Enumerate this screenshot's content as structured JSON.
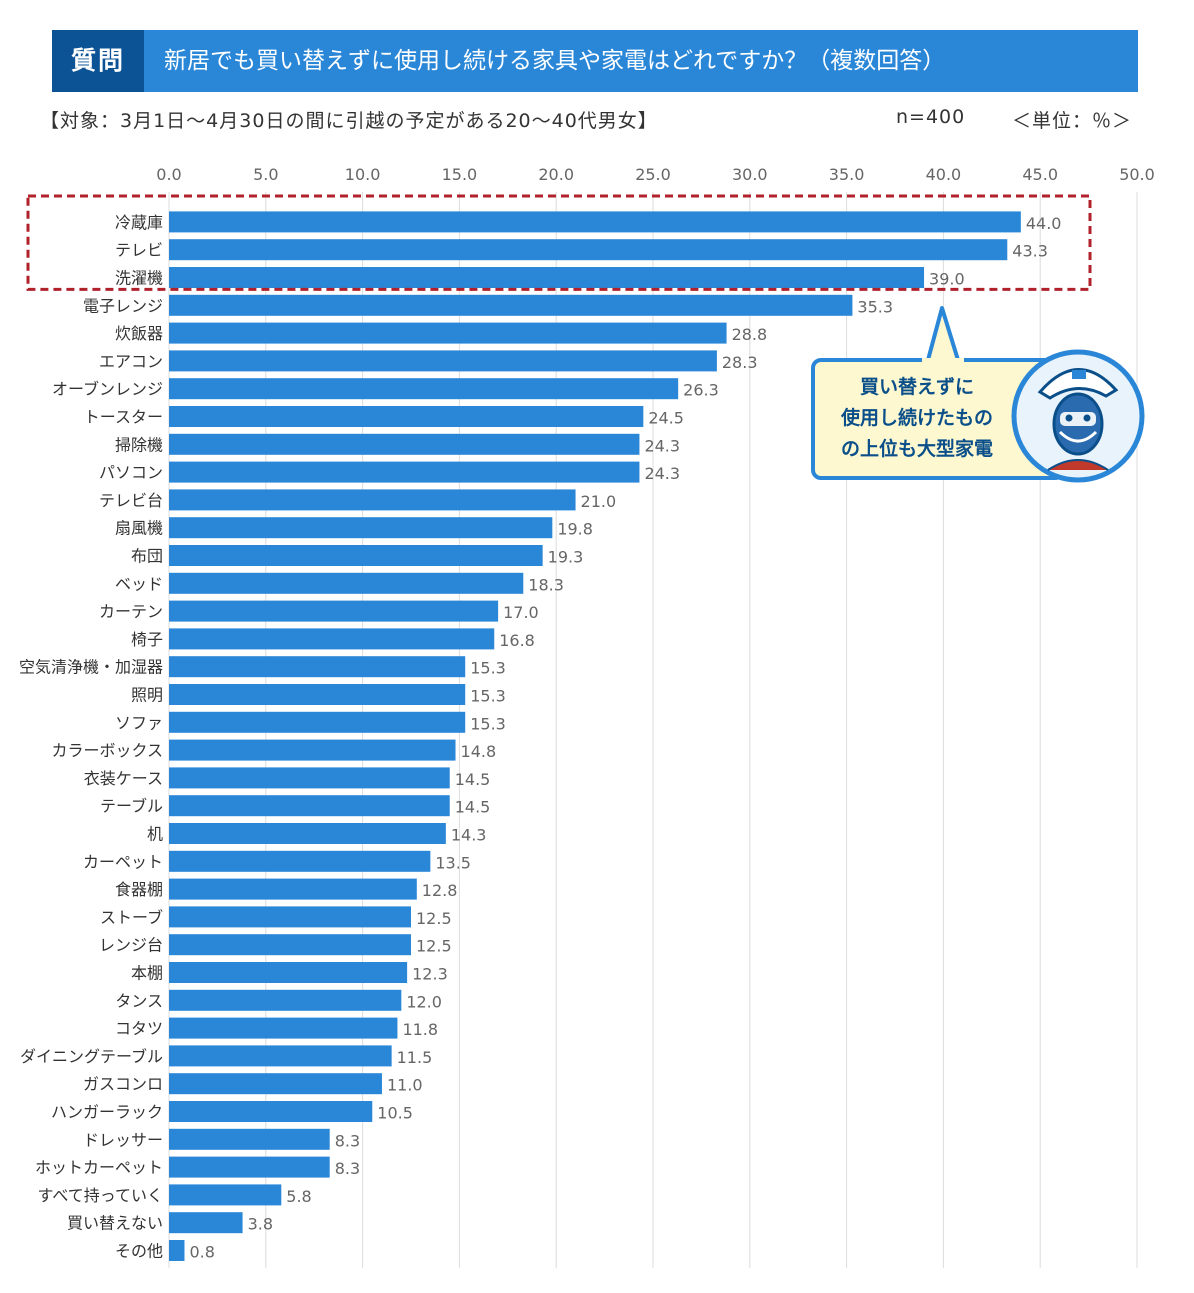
{
  "header": {
    "tag": "質問",
    "question": "新居でも買い替えずに使用し続ける家具や家電はどれですか？（複数回答）"
  },
  "subheader": {
    "target": "【対象：3月1日～4月30日の間に引越の予定がある20～40代男女】",
    "sample": "n=400",
    "unit": "＜単位：％＞"
  },
  "callout": {
    "text": "買い替えずに\n使用し続けたもの\nの上位も大型家電"
  },
  "colors": {
    "bar": "#2a87d8",
    "header": "#2a87d8",
    "tag": "#0b5394",
    "highlight": "#b0212b",
    "callout_bg": "#fdf8d0",
    "callout_border": "#2a87d8"
  },
  "chart_data": {
    "type": "bar",
    "orientation": "horizontal",
    "xlim": [
      0,
      50
    ],
    "ticks": [
      "0.0",
      "5.0",
      "10.0",
      "15.0",
      "20.0",
      "25.0",
      "30.0",
      "35.0",
      "40.0",
      "45.0",
      "50.0"
    ],
    "grid": true,
    "highlight_top": 3,
    "categories": [
      "冷蔵庫",
      "テレビ",
      "洗濯機",
      "電子レンジ",
      "炊飯器",
      "エアコン",
      "オーブンレンジ",
      "トースター",
      "掃除機",
      "パソコン",
      "テレビ台",
      "扇風機",
      "布団",
      "ベッド",
      "カーテン",
      "椅子",
      "空気清浄機・加湿器",
      "照明",
      "ソファ",
      "カラーボックス",
      "衣装ケース",
      "テーブル",
      "机",
      "カーペット",
      "食器棚",
      "ストーブ",
      "レンジ台",
      "本棚",
      "タンス",
      "コタツ",
      "ダイニングテーブル",
      "ガスコンロ",
      "ハンガーラック",
      "ドレッサー",
      "ホットカーペット",
      "すべて持っていく",
      "買い替えない",
      "その他"
    ],
    "values": [
      44.0,
      43.3,
      39.0,
      35.3,
      28.8,
      28.3,
      26.3,
      24.5,
      24.3,
      24.3,
      21.0,
      19.8,
      19.3,
      18.3,
      17.0,
      16.8,
      15.3,
      15.3,
      15.3,
      14.8,
      14.5,
      14.5,
      14.3,
      13.5,
      12.8,
      12.5,
      12.5,
      12.3,
      12.0,
      11.8,
      11.5,
      11.0,
      10.5,
      8.3,
      8.3,
      5.8,
      3.8,
      0.8
    ],
    "labels": [
      "44.0",
      "43.3",
      "39.0",
      "35.3",
      "28.8",
      "28.3",
      "26.3",
      "24.5",
      "24.3",
      "24.3",
      "21.0",
      "19.8",
      "19.3",
      "18.3",
      "17.0",
      "16.8",
      "15.3",
      "15.3",
      "15.3",
      "14.8",
      "14.5",
      "14.5",
      "14.3",
      "13.5",
      "12.8",
      "12.5",
      "12.5",
      "12.3",
      "12.0",
      "11.8",
      "11.5",
      "11.0",
      "10.5",
      "8.3",
      "8.3",
      "5.8",
      "3.8",
      "0.8"
    ]
  }
}
